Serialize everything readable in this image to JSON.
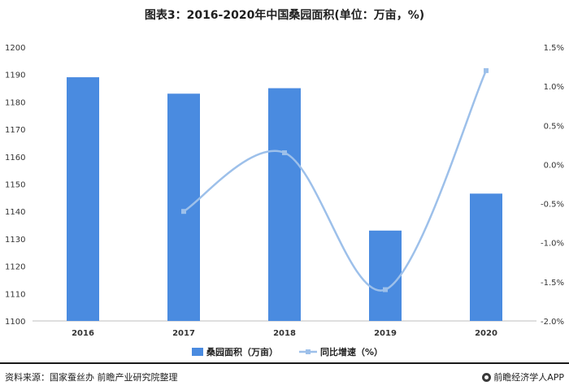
{
  "chart_data": {
    "type": "bar",
    "title": "图表3：2016-2020年中国桑园面积(单位：万亩，%)",
    "categories": [
      "2016",
      "2017",
      "2018",
      "2019",
      "2020"
    ],
    "series": [
      {
        "name": "桑园面积（万亩）",
        "type": "bar",
        "axis": "left",
        "color": "#4a8be0",
        "values": [
          1189,
          1183,
          1185,
          1133,
          1146.5
        ]
      },
      {
        "name": "同比增速（%）",
        "type": "line",
        "axis": "right",
        "color": "#9dc0ea",
        "values": [
          null,
          -0.6,
          0.15,
          -1.6,
          1.2
        ]
      }
    ],
    "y_left": {
      "range": [
        1100,
        1200
      ],
      "ticks": [
        "1100",
        "1110",
        "1120",
        "1130",
        "1140",
        "1150",
        "1160",
        "1170",
        "1180",
        "1190",
        "1200"
      ]
    },
    "y_right": {
      "range": [
        -2.0,
        1.5
      ],
      "ticks": [
        "-2.0%",
        "-1.5%",
        "-1.0%",
        "-0.5%",
        "0.0%",
        "0.5%",
        "1.0%",
        "1.5%"
      ]
    },
    "legend_position": "bottom",
    "grid": false
  },
  "footer": {
    "source": "资料来源：国家蚕丝办 前瞻产业研究院整理",
    "brand": "前瞻经济学人APP"
  }
}
